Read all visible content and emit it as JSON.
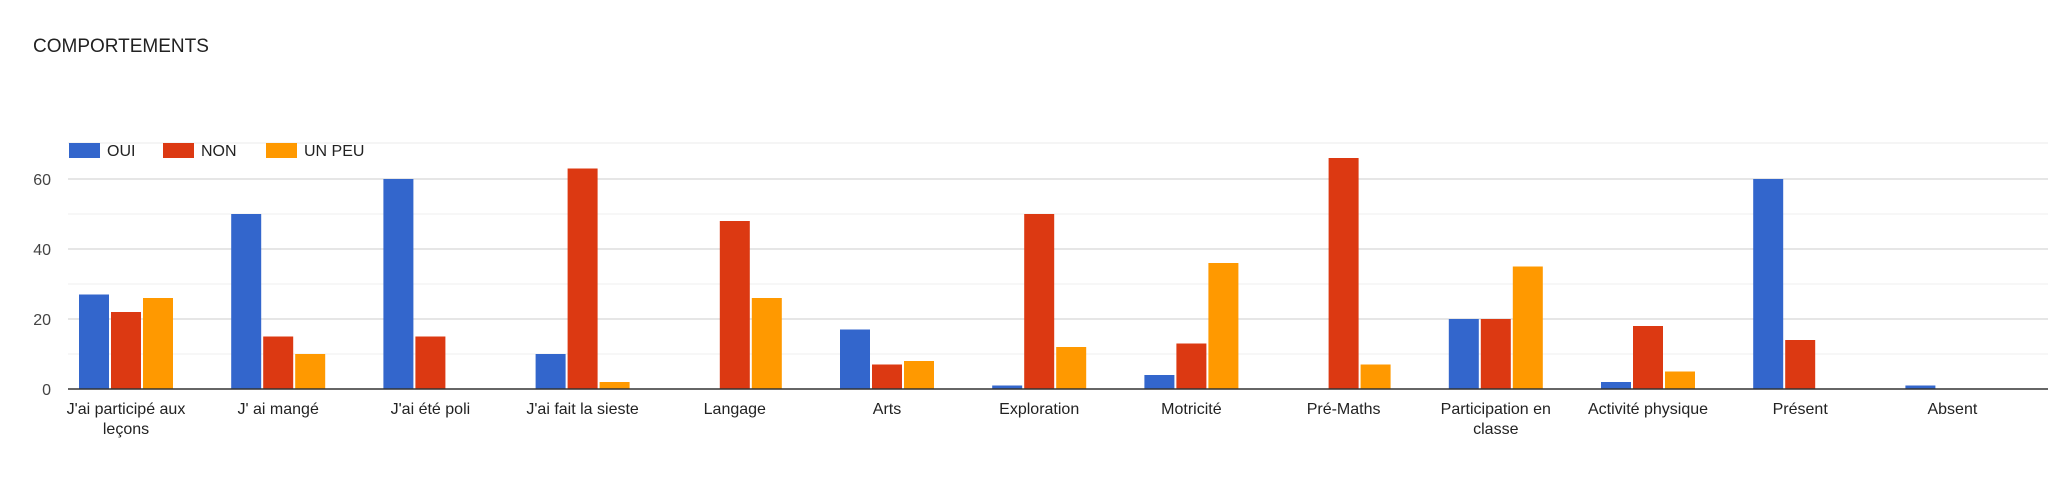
{
  "chart_data": {
    "type": "bar",
    "title": "COMPORTEMENTS",
    "categories": [
      [
        "J'ai participé aux",
        "leçons"
      ],
      [
        "J' ai mangé"
      ],
      [
        "J'ai été poli"
      ],
      [
        "J'ai fait la sieste"
      ],
      [
        "Langage"
      ],
      [
        "Arts"
      ],
      [
        "Exploration"
      ],
      [
        "Motricité"
      ],
      [
        "Pré-Maths"
      ],
      [
        "Participation en",
        "classe"
      ],
      [
        "Activité physique"
      ],
      [
        "Présent"
      ],
      [
        "Absent"
      ]
    ],
    "series": [
      {
        "name": "OUI",
        "color": "#3366cc",
        "values": [
          27,
          50,
          60,
          10,
          0,
          17,
          1,
          4,
          0,
          20,
          2,
          60,
          1
        ]
      },
      {
        "name": "NON",
        "color": "#dc3912",
        "values": [
          22,
          15,
          15,
          63,
          48,
          7,
          50,
          13,
          66,
          20,
          18,
          14,
          0
        ]
      },
      {
        "name": "UN PEU",
        "color": "#ff9900",
        "values": [
          26,
          10,
          0,
          2,
          26,
          8,
          12,
          36,
          7,
          35,
          5,
          0,
          0
        ]
      }
    ],
    "ylim": [
      0,
      70
    ],
    "yticks": [
      0,
      20,
      40,
      60
    ],
    "xlabel": "",
    "ylabel": "",
    "grid": true,
    "legend_position": "top-left"
  }
}
